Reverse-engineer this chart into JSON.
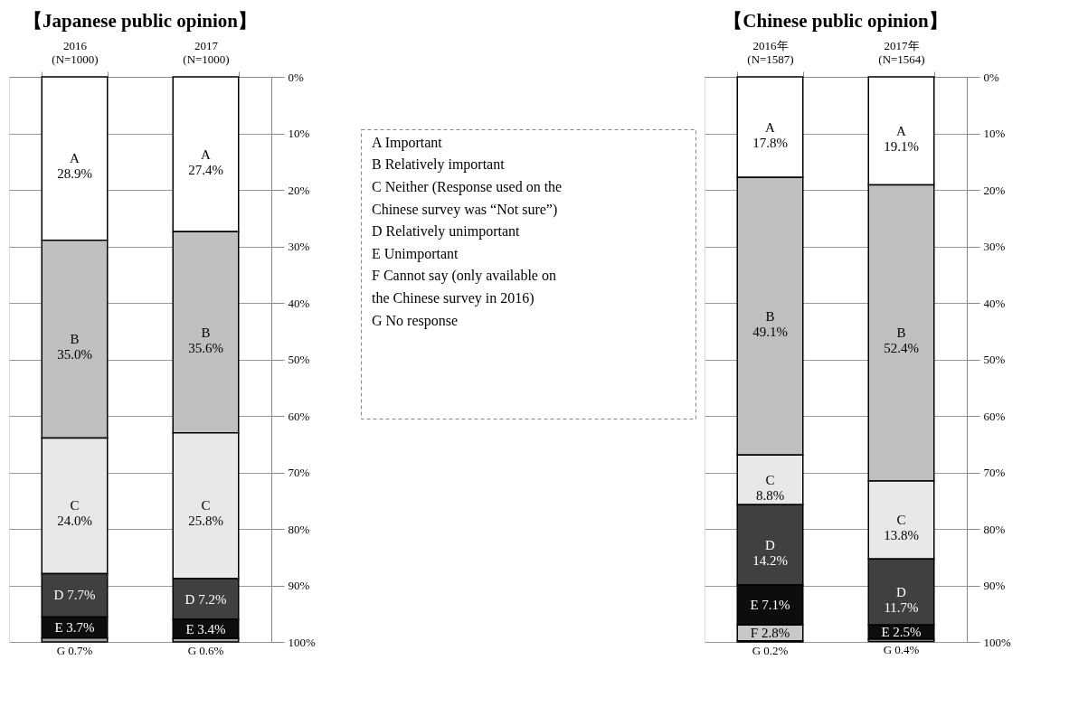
{
  "chart_data": [
    {
      "type": "bar",
      "title": "【Japanese public opinion】",
      "stacked": true,
      "categories": [
        "2016 (N=1000)",
        "2017 (N=1000)"
      ],
      "ylim": [
        100,
        0
      ],
      "yticks": [
        {
          "value": 0,
          "label": "0%"
        },
        {
          "value": 10,
          "label": "10%"
        },
        {
          "value": 20,
          "label": "20%"
        },
        {
          "value": 30,
          "label": "30%"
        },
        {
          "value": 40,
          "label": "40%"
        },
        {
          "value": 50,
          "label": "50%"
        },
        {
          "value": 60,
          "label": "60%"
        },
        {
          "value": 70,
          "label": "70%"
        },
        {
          "value": 80,
          "label": "80%"
        },
        {
          "value": 90,
          "label": "90%"
        },
        {
          "value": 100,
          "label": "100%"
        }
      ],
      "grid": "y",
      "series": [
        {
          "name": "A",
          "color": "#ffffff",
          "values": [
            28.9,
            27.4
          ],
          "value_labels": [
            "28.9%",
            "27.4%"
          ]
        },
        {
          "name": "B",
          "color": "#bfbfbf",
          "values": [
            35.0,
            35.6
          ],
          "value_labels": [
            "35.0%",
            "35.6%"
          ]
        },
        {
          "name": "C",
          "color": "#e8e8e8",
          "values": [
            24.0,
            25.8
          ],
          "value_labels": [
            "24.0%",
            "25.8%"
          ]
        },
        {
          "name": "D",
          "color": "#404040",
          "values": [
            7.7,
            7.2
          ],
          "value_labels": [
            "7.7%",
            "7.2%"
          ]
        },
        {
          "name": "E",
          "color": "#0d0d0d",
          "values": [
            3.7,
            3.4
          ],
          "value_labels": [
            "3.7%",
            "3.4%"
          ]
        },
        {
          "name": "G",
          "color": "#a6a6a6",
          "values": [
            0.7,
            0.6
          ],
          "value_labels": [
            "0.7%",
            "0.6%"
          ]
        }
      ]
    },
    {
      "type": "other",
      "annotations": [
        "A Important",
        "B Relatively important",
        "C Neither (Response used on the Chinese survey was “Not sure”)",
        "D Relatively unimportant",
        "E Unimportant",
        "F Cannot say (only available on the Chinese survey in 2016)",
        "G No response"
      ]
    },
    {
      "type": "bar",
      "title": "【Chinese public opinion】",
      "stacked": true,
      "categories": [
        "2016年 (N=1587)",
        "2017年 (N=1564)"
      ],
      "ylim": [
        100,
        0
      ],
      "yticks": [
        {
          "value": 0,
          "label": "0%"
        },
        {
          "value": 10,
          "label": "10%"
        },
        {
          "value": 20,
          "label": "20%"
        },
        {
          "value": 30,
          "label": "30%"
        },
        {
          "value": 40,
          "label": "40%"
        },
        {
          "value": 50,
          "label": "50%"
        },
        {
          "value": 60,
          "label": "60%"
        },
        {
          "value": 70,
          "label": "70%"
        },
        {
          "value": 80,
          "label": "80%"
        },
        {
          "value": 90,
          "label": "90%"
        },
        {
          "value": 100,
          "label": "100%"
        }
      ],
      "grid": "y",
      "series": [
        {
          "name": "A",
          "color": "#ffffff",
          "values": [
            17.8,
            19.1
          ],
          "value_labels": [
            "17.8%",
            "19.1%"
          ]
        },
        {
          "name": "B",
          "color": "#bfbfbf",
          "values": [
            49.1,
            52.4
          ],
          "value_labels": [
            "49.1%",
            "52.4%"
          ]
        },
        {
          "name": "C",
          "color": "#e8e8e8",
          "values": [
            8.8,
            13.8
          ],
          "value_labels": [
            "8.8%",
            "13.8%"
          ]
        },
        {
          "name": "D",
          "color": "#404040",
          "values": [
            14.2,
            11.7
          ],
          "value_labels": [
            "14.2%",
            "11.7%"
          ]
        },
        {
          "name": "E",
          "color": "#0d0d0d",
          "values": [
            7.1,
            2.5
          ],
          "value_labels": [
            "7.1%",
            "2.5%"
          ]
        },
        {
          "name": "F",
          "color": "#c8c8c8",
          "values": [
            2.8,
            null
          ],
          "value_labels": [
            "2.8%",
            null
          ]
        },
        {
          "name": "G",
          "color": "#a6a6a6",
          "values": [
            0.2,
            0.4
          ],
          "value_labels": [
            "0.2%",
            "0.4%"
          ]
        }
      ]
    }
  ]
}
